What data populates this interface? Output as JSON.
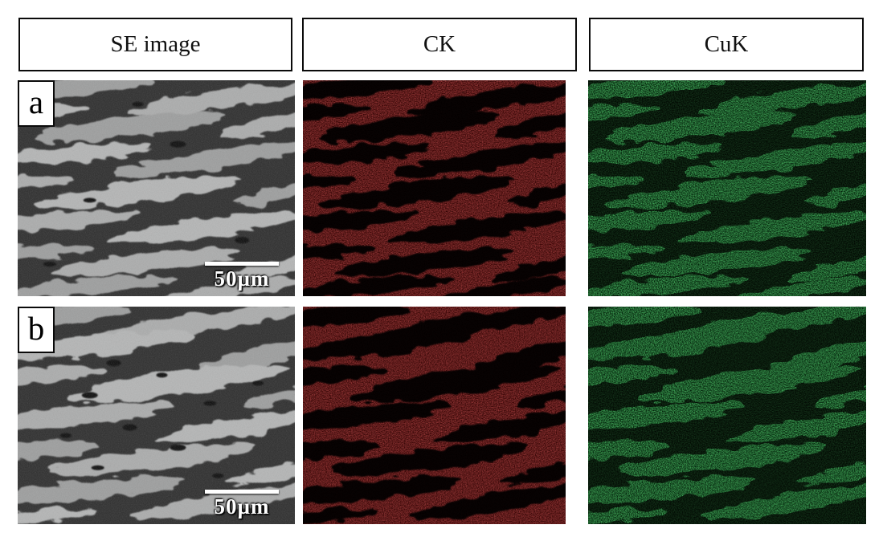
{
  "figure": {
    "columns": [
      {
        "id": "se",
        "label": "SE image"
      },
      {
        "id": "ck",
        "label": "CK"
      },
      {
        "id": "cuk",
        "label": "CuK"
      }
    ],
    "rows": [
      {
        "label": "a",
        "scale_bar_label": "50µm"
      },
      {
        "label": "b",
        "scale_bar_label": "50µm"
      }
    ],
    "colors": {
      "se_matrix": "#2e2e2e",
      "se_streak_shades": [
        "#9d9e9e",
        "#abacac",
        "#b4b5b5"
      ],
      "map_background": "#040302",
      "ck_speckle": "#4a0b0b",
      "cuk_speckle": "#2d8b3a"
    }
  }
}
